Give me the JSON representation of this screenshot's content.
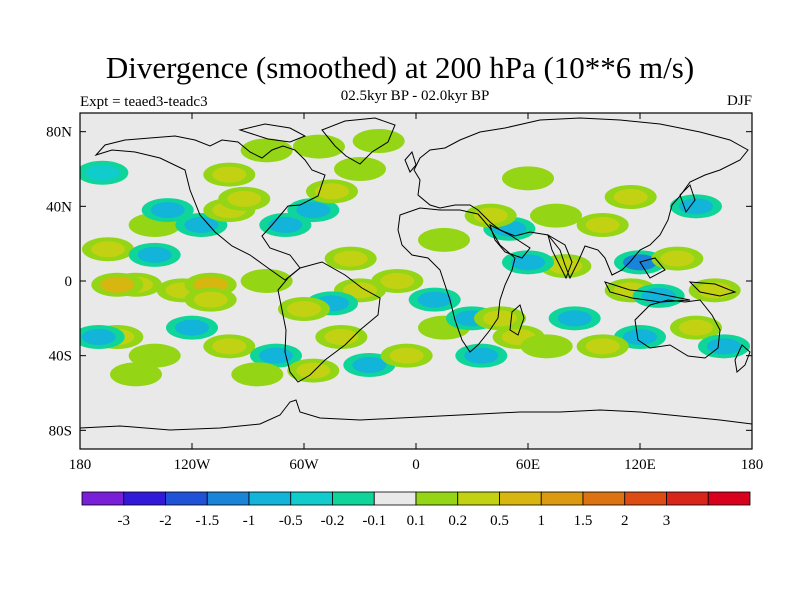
{
  "title": "Divergence (smoothed) at 200 hPa (10**6 m/s)",
  "subtitle": "02.5kyr BP - 02.0kyr BP",
  "left_label": "Expt = teaed3-teadc3",
  "right_label": "DJF",
  "colors": {
    "background": "#e9e9e9",
    "coast": "#000000"
  },
  "chart_data": {
    "type": "heatmap",
    "map": "global cylindrical equidistant",
    "field": "200 hPa divergence difference (smoothed)",
    "units": "10**6 m/s",
    "season": "DJF",
    "lon_range": [
      -180,
      180
    ],
    "lat_range": [
      -90,
      90
    ],
    "lat_ticks": [
      {
        "value": 80,
        "label": "80N"
      },
      {
        "value": 40,
        "label": "40N"
      },
      {
        "value": 0,
        "label": "0"
      },
      {
        "value": -40,
        "label": "40S"
      },
      {
        "value": -80,
        "label": "80S"
      }
    ],
    "lon_ticks": [
      {
        "value": -180,
        "label": "180"
      },
      {
        "value": -120,
        "label": "120W"
      },
      {
        "value": -60,
        "label": "60W"
      },
      {
        "value": 0,
        "label": "0"
      },
      {
        "value": 60,
        "label": "60E"
      },
      {
        "value": 120,
        "label": "120E"
      },
      {
        "value": 180,
        "label": "180"
      }
    ],
    "colorbar": {
      "colors": [
        "#7a1fd8",
        "#3219d9",
        "#1f52d6",
        "#1a84d8",
        "#12b4d9",
        "#10cccc",
        "#0fd59a",
        "#e9e9e9",
        "#94d515",
        "#c2d212",
        "#d8b610",
        "#dc9a10",
        "#dd7212",
        "#dc4c14",
        "#d9261b",
        "#d8001c"
      ],
      "labels": [
        "-3",
        "-2",
        "-1.5",
        "-1",
        "-0.5",
        "-0.2",
        "-0.1",
        "0.1",
        "0.2",
        "0.5",
        "1",
        "1.5",
        "2",
        "3"
      ]
    },
    "anomaly_blobs": [
      {
        "lon": -165,
        "lat": 17,
        "level": 0.5
      },
      {
        "lon": -150,
        "lat": -2,
        "level": 0.5
      },
      {
        "lon": -160,
        "lat": -2,
        "level": 1
      },
      {
        "lon": -125,
        "lat": -5,
        "level": 0.5
      },
      {
        "lon": -110,
        "lat": -2,
        "level": 1
      },
      {
        "lon": -140,
        "lat": 30,
        "level": 0.2
      },
      {
        "lon": -133,
        "lat": 38,
        "level": -0.5
      },
      {
        "lon": -115,
        "lat": 30,
        "level": -0.5
      },
      {
        "lon": -100,
        "lat": 38,
        "level": 0.5
      },
      {
        "lon": -92,
        "lat": 44,
        "level": 0.5
      },
      {
        "lon": -70,
        "lat": 30,
        "level": -0.5
      },
      {
        "lon": -55,
        "lat": 38,
        "level": -0.5
      },
      {
        "lon": -45,
        "lat": 48,
        "level": 0.5
      },
      {
        "lon": -30,
        "lat": 60,
        "level": 0.2
      },
      {
        "lon": -20,
        "lat": 75,
        "level": 0.2
      },
      {
        "lon": -80,
        "lat": 70,
        "level": 0.2
      },
      {
        "lon": -52,
        "lat": 72,
        "level": 0.2
      },
      {
        "lon": -100,
        "lat": 57,
        "level": 0.5
      },
      {
        "lon": -140,
        "lat": 14,
        "level": -0.5
      },
      {
        "lon": -168,
        "lat": 58,
        "level": -0.2
      },
      {
        "lon": -35,
        "lat": 12,
        "level": 0.5
      },
      {
        "lon": -10,
        "lat": 0,
        "level": 0.5
      },
      {
        "lon": -30,
        "lat": -5,
        "level": 0.5
      },
      {
        "lon": -45,
        "lat": -12,
        "level": -0.5
      },
      {
        "lon": -60,
        "lat": -15,
        "level": 0.5
      },
      {
        "lon": -120,
        "lat": -25,
        "level": -0.5
      },
      {
        "lon": -160,
        "lat": -30,
        "level": 0.5
      },
      {
        "lon": -140,
        "lat": -40,
        "level": 0.2
      },
      {
        "lon": -100,
        "lat": -35,
        "level": 0.5
      },
      {
        "lon": -75,
        "lat": -40,
        "level": -0.5
      },
      {
        "lon": -40,
        "lat": -30,
        "level": 0.5
      },
      {
        "lon": -25,
        "lat": -45,
        "level": -0.5
      },
      {
        "lon": -5,
        "lat": -40,
        "level": 0.5
      },
      {
        "lon": 15,
        "lat": -25,
        "level": 0.2
      },
      {
        "lon": 10,
        "lat": -10,
        "level": -0.5
      },
      {
        "lon": 30,
        "lat": -20,
        "level": -0.5
      },
      {
        "lon": 45,
        "lat": -20,
        "level": 0.5
      },
      {
        "lon": 55,
        "lat": -30,
        "level": 0.5
      },
      {
        "lon": 35,
        "lat": -40,
        "level": -0.5
      },
      {
        "lon": 15,
        "lat": 22,
        "level": 0.2
      },
      {
        "lon": 50,
        "lat": 28,
        "level": -0.5
      },
      {
        "lon": 40,
        "lat": 35,
        "level": 0.5
      },
      {
        "lon": 75,
        "lat": 35,
        "level": 0.2
      },
      {
        "lon": 80,
        "lat": 8,
        "level": 0.5
      },
      {
        "lon": 60,
        "lat": 10,
        "level": -0.5
      },
      {
        "lon": 100,
        "lat": 30,
        "level": 0.5
      },
      {
        "lon": 115,
        "lat": 45,
        "level": 0.5
      },
      {
        "lon": 150,
        "lat": 40,
        "level": -0.5
      },
      {
        "lon": 120,
        "lat": 10,
        "level": -1
      },
      {
        "lon": 140,
        "lat": 12,
        "level": 0.5
      },
      {
        "lon": 115,
        "lat": -5,
        "level": 0.5
      },
      {
        "lon": 130,
        "lat": -8,
        "level": -0.5
      },
      {
        "lon": 160,
        "lat": -5,
        "level": 0.5
      },
      {
        "lon": 150,
        "lat": -25,
        "level": 0.5
      },
      {
        "lon": 165,
        "lat": -35,
        "level": -0.5
      },
      {
        "lon": 120,
        "lat": -30,
        "level": -0.5
      },
      {
        "lon": 100,
        "lat": -35,
        "level": 0.5
      },
      {
        "lon": 85,
        "lat": -20,
        "level": -0.5
      },
      {
        "lon": 70,
        "lat": -35,
        "level": 0.2
      },
      {
        "lon": -150,
        "lat": -50,
        "level": 0.2
      },
      {
        "lon": -85,
        "lat": -50,
        "level": 0.2
      },
      {
        "lon": -55,
        "lat": -48,
        "level": 0.5
      },
      {
        "lon": -110,
        "lat": -10,
        "level": 0.5
      },
      {
        "lon": -80,
        "lat": 0,
        "level": 0.2
      },
      {
        "lon": -170,
        "lat": -30,
        "level": -0.5
      },
      {
        "lon": 60,
        "lat": 55,
        "level": 0.2
      }
    ]
  }
}
